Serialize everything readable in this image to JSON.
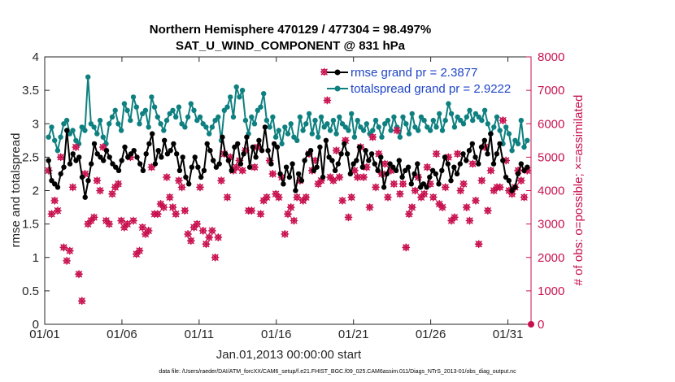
{
  "chart_data": {
    "type": "line",
    "title": "Northern Hemisphere 470129 / 477304 = 98.497%",
    "subtitle": "SAT_U_WIND_COMPONENT @ 831 hPa",
    "xlabel": "Jan.01,2013 00:00:00 start",
    "ylabel": "rmse and totalspread",
    "y2label": "# of obs: o=possible; ×=assimilated",
    "xlim": [
      0,
      31.5
    ],
    "ylim": [
      0,
      4
    ],
    "y2lim": [
      0,
      8000
    ],
    "x_ticks": [
      0,
      5,
      10,
      15,
      20,
      25,
      30
    ],
    "x_tick_labels": [
      "01/01",
      "01/06",
      "01/11",
      "01/16",
      "01/21",
      "01/26",
      "01/31"
    ],
    "y_ticks": [
      0,
      0.5,
      1,
      1.5,
      2,
      2.5,
      3,
      3.5,
      4
    ],
    "y_tick_labels": [
      "0",
      "0.5",
      "1",
      "1.5",
      "2",
      "2.5",
      "3",
      "3.5",
      "4"
    ],
    "y2_ticks": [
      0,
      1000,
      2000,
      3000,
      4000,
      5000,
      6000,
      7000,
      8000
    ],
    "y2_tick_labels": [
      "0",
      "1000",
      "2000",
      "3000",
      "4000",
      "5000",
      "6000",
      "7000",
      "8000"
    ],
    "series": [
      {
        "name": "rmse grand pr = 2.3877",
        "color": "#000000",
        "axis": "left",
        "values": [
          2.45,
          2.15,
          2.1,
          2.05,
          2.25,
          2.35,
          2.9,
          2.4,
          2.55,
          2.45,
          2.5,
          2.2,
          1.9,
          2.15,
          2.4,
          2.7,
          2.55,
          2.5,
          2.45,
          2.6,
          2.5,
          2.4,
          2.35,
          2.3,
          2.45,
          2.65,
          2.5,
          2.55,
          2.6,
          2.5,
          2.4,
          2.3,
          2.55,
          2.7,
          2.85,
          2.4,
          2.6,
          2.5,
          2.75,
          2.55,
          2.6,
          2.7,
          2.55,
          2.3,
          2.5,
          2.2,
          2.1,
          2.35,
          2.5,
          2.35,
          2.2,
          2.3,
          2.7,
          2.6,
          2.45,
          2.35,
          2.4,
          2.8,
          2.55,
          2.45,
          2.3,
          2.65,
          2.7,
          2.4,
          2.55,
          2.8,
          2.35,
          2.65,
          2.5,
          2.75,
          2.6,
          2.95,
          2.6,
          2.4,
          2.7,
          2.65,
          2.25,
          2.1,
          2.35,
          2.2,
          2.4,
          2.0,
          2.25,
          2.15,
          2.45,
          2.55,
          2.6,
          2.3,
          2.35,
          2.65,
          2.2,
          2.75,
          2.5,
          2.45,
          2.3,
          2.4,
          2.55,
          2.7,
          2.55,
          2.25,
          2.4,
          2.45,
          2.65,
          2.35,
          2.6,
          2.45,
          2.55,
          2.4,
          2.3,
          2.5,
          2.05,
          2.25,
          2.4,
          2.35,
          2.3,
          2.45,
          2.2,
          2.3,
          2.35,
          2.1,
          2.25,
          2.4,
          2.05,
          2.1,
          2.05,
          2.2,
          2.3,
          2.25,
          2.1,
          2.3,
          2.5,
          2.4,
          2.15,
          2.35,
          2.25,
          2.4,
          2.55,
          2.45,
          2.6,
          2.7,
          2.5,
          2.4,
          2.65,
          2.75,
          2.55,
          2.85,
          2.4,
          2.55,
          2.7,
          2.45,
          2.2,
          2.15,
          2.0,
          2.05,
          2.25,
          2.4,
          2.3,
          2.35
        ]
      },
      {
        "name": "totalspread grand pr = 2.9222",
        "color": "#0f8080",
        "axis": "left",
        "values": [
          2.8,
          2.95,
          2.75,
          2.6,
          2.8,
          3.0,
          3.05,
          2.85,
          2.9,
          2.75,
          2.7,
          2.95,
          2.9,
          3.7,
          3.0,
          2.95,
          2.85,
          3.05,
          2.8,
          2.7,
          3.0,
          3.1,
          3.2,
          3.0,
          2.9,
          3.3,
          3.2,
          3.05,
          3.4,
          3.25,
          3.0,
          3.15,
          3.2,
          2.95,
          3.4,
          3.25,
          3.1,
          3.0,
          2.9,
          3.05,
          3.15,
          3.2,
          3.1,
          3.25,
          3.0,
          2.95,
          3.1,
          3.3,
          3.2,
          3.05,
          3.1,
          3.0,
          2.95,
          2.85,
          2.95,
          3.05,
          3.1,
          2.75,
          3.2,
          3.25,
          3.4,
          3.1,
          3.55,
          3.4,
          3.5,
          3.05,
          2.85,
          3.1,
          3.0,
          3.2,
          3.25,
          3.45,
          3.05,
          2.95,
          3.1,
          2.8,
          2.9,
          2.7,
          2.95,
          2.85,
          3.0,
          2.8,
          2.75,
          3.1,
          2.9,
          3.0,
          3.15,
          2.85,
          3.05,
          2.8,
          3.1,
          2.95,
          3.0,
          2.9,
          3.05,
          2.85,
          3.1,
          3.0,
          2.95,
          2.9,
          3.15,
          2.8,
          3.05,
          2.95,
          2.9,
          3.0,
          2.85,
          2.9,
          3.05,
          2.95,
          2.8,
          3.0,
          3.05,
          2.9,
          3.1,
          2.95,
          2.8,
          3.1,
          3.0,
          2.85,
          3.15,
          2.95,
          2.9,
          3.1,
          3.05,
          2.95,
          2.9,
          3.05,
          2.95,
          3.15,
          2.9,
          3.05,
          3.3,
          3.15,
          2.95,
          3.1,
          3.05,
          3.0,
          3.1,
          3.2,
          3.05,
          3.15,
          3.1,
          3.05,
          3.2,
          3.0,
          2.85,
          2.95,
          3.1,
          2.9,
          2.7,
          2.95,
          2.85,
          2.6,
          2.75,
          2.7,
          3.05,
          2.65,
          2.75
        ]
      },
      {
        "name": "# of obs possible / assimilated",
        "color": "#c8104f",
        "axis": "right",
        "values": [
          4600,
          3300,
          3700,
          3400,
          5000,
          2300,
          1900,
          2200,
          4100,
          5300,
          1500,
          700,
          4500,
          3000,
          3100,
          3200,
          4300,
          4000,
          5300,
          3100,
          3000,
          3900,
          4100,
          4200,
          3100,
          2900,
          3000,
          5000,
          3100,
          2100,
          2200,
          2900,
          2700,
          2800,
          4700,
          3300,
          3300,
          3600,
          3500,
          4400,
          3800,
          3500,
          3300,
          4300,
          4100,
          3400,
          2700,
          2500,
          2900,
          3000,
          4100,
          2800,
          2400,
          2600,
          2800,
          2000,
          2600,
          4300,
          5100,
          3800,
          5000,
          4600,
          4700,
          4900,
          4600,
          5200,
          3400,
          3400,
          4700,
          5300,
          3300,
          3700,
          3800,
          4900,
          4500,
          3900,
          3800,
          4400,
          2700,
          3300,
          3500,
          3100,
          3800,
          4300,
          3700,
          3800,
          5100,
          4600,
          4900,
          4200,
          4300,
          7550,
          6700,
          4400,
          4300,
          5200,
          4400,
          3700,
          5500,
          3200,
          3800,
          4600,
          4400,
          5300,
          4400,
          4700,
          3500,
          5600,
          4100,
          5100,
          4500,
          4800,
          3800,
          4600,
          4200,
          5800,
          3900,
          4200,
          2300,
          3300,
          3500,
          4000,
          4400,
          3800,
          3900,
          4700,
          4200,
          3800,
          5100,
          3600,
          3500,
          4100,
          5000,
          3100,
          3200,
          5100,
          4000,
          4200,
          3500,
          3100,
          4800,
          3700,
          2400,
          4300,
          5300,
          3400,
          4600,
          4000,
          4100,
          4100,
          6100,
          4900,
          4000,
          3900,
          4100,
          4600,
          4300,
          3800,
          4600
        ]
      }
    ],
    "legend_location": "top-right"
  },
  "footer": "data file: /Users/raeder/DAI/ATM_forcXX/CAM6_setup/f.e21.FHIST_BGC.f09_025.CAM6assim.011/Diags_NTrS_2013-01/obs_diag_output.nc"
}
